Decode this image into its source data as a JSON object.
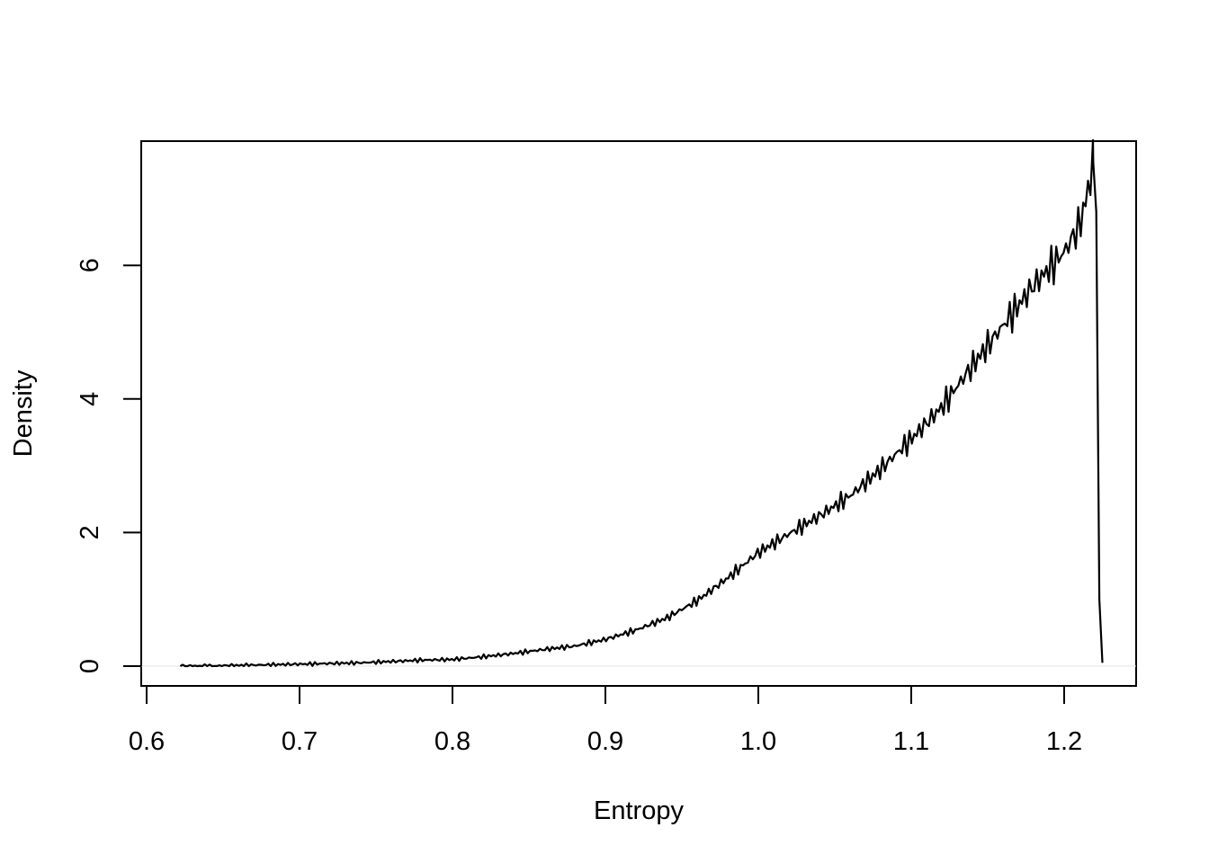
{
  "chart_data": {
    "type": "line",
    "title": "",
    "xlabel": "Entropy",
    "ylabel": "Density",
    "xlim": [
      0.6,
      1.24
    ],
    "ylim": [
      0,
      7.6
    ],
    "x_ticks": [
      0.6,
      0.7,
      0.8,
      0.9,
      1.0,
      1.1,
      1.2
    ],
    "x_tick_labels": [
      "0.6",
      "0.7",
      "0.8",
      "0.9",
      "1.0",
      "1.1",
      "1.2"
    ],
    "y_ticks": [
      0,
      2,
      4,
      6
    ],
    "y_tick_labels": [
      "0",
      "2",
      "4",
      "6"
    ],
    "grid": false,
    "legend": "none",
    "series": [
      {
        "color": "#000000",
        "x": [
          0.622,
          0.64,
          0.66,
          0.68,
          0.7,
          0.72,
          0.74,
          0.76,
          0.78,
          0.8,
          0.82,
          0.84,
          0.86,
          0.88,
          0.9,
          0.92,
          0.94,
          0.96,
          0.98,
          1.0,
          1.02,
          1.04,
          1.06,
          1.08,
          1.1,
          1.12,
          1.14,
          1.16,
          1.18,
          1.2,
          1.21,
          1.215,
          1.219,
          1.221,
          1.223,
          1.225
        ],
        "y": [
          0.0,
          0.0,
          0.01,
          0.02,
          0.03,
          0.04,
          0.05,
          0.07,
          0.09,
          0.1,
          0.14,
          0.19,
          0.25,
          0.3,
          0.4,
          0.54,
          0.72,
          0.98,
          1.32,
          1.7,
          1.98,
          2.25,
          2.55,
          2.95,
          3.4,
          3.88,
          4.5,
          5.1,
          5.7,
          6.2,
          6.6,
          7.05,
          7.55,
          6.8,
          1.0,
          0.05
        ]
      }
    ]
  }
}
